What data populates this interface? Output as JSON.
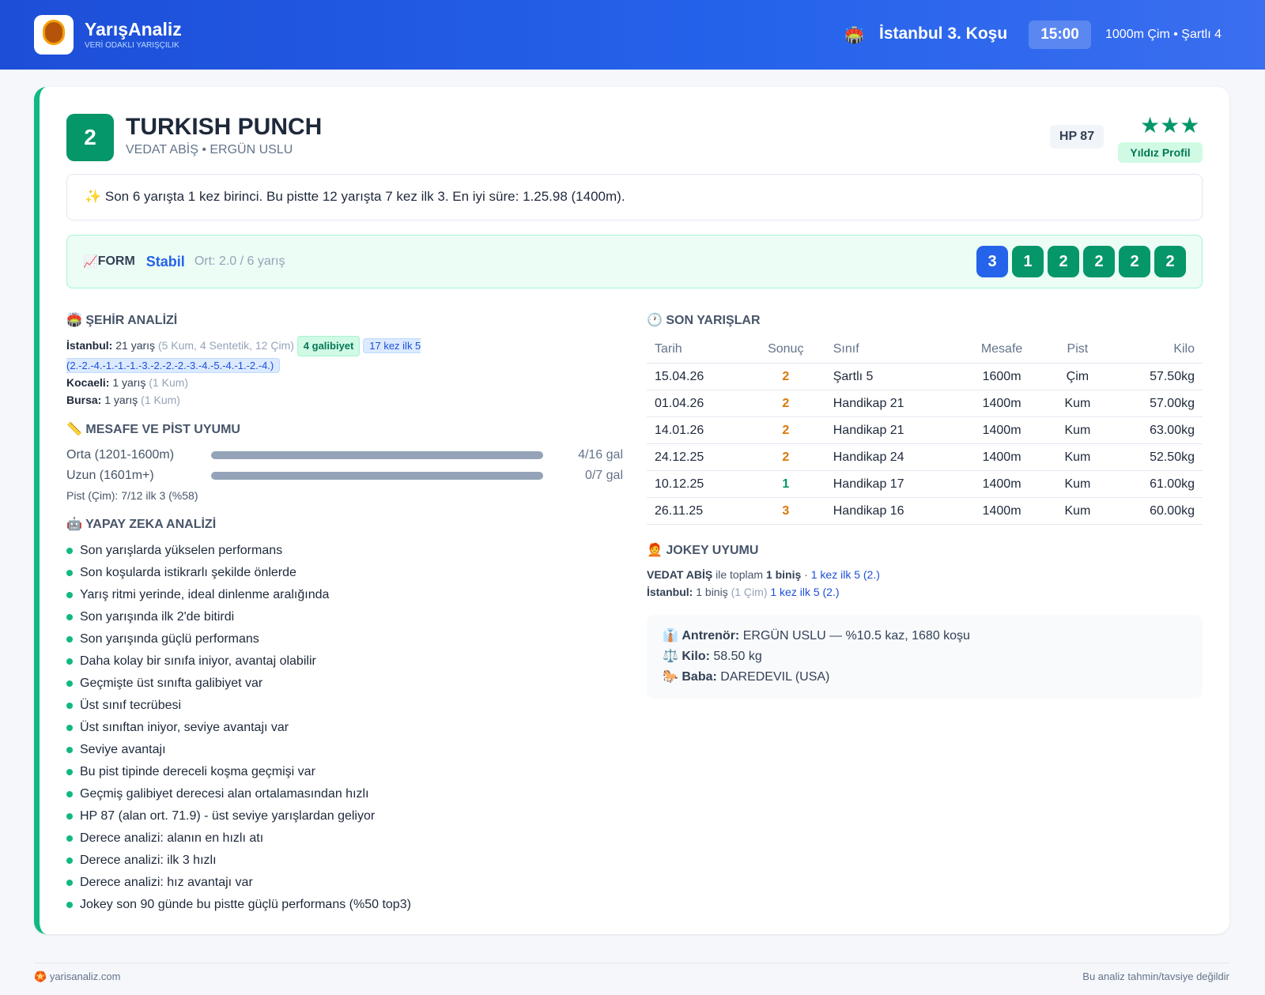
{
  "header": {
    "brand": "YarışAnaliz",
    "tagline": "VERİ ODAKLI YARIŞÇILIK",
    "race": "İstanbul 3. Koşu",
    "time": "15:00",
    "info": "1000m Çim • Şartlı 4"
  },
  "horse": {
    "number": "2",
    "name": "TURKISH PUNCH",
    "subtitle": "VEDAT ABİŞ • ERGÜN USLU",
    "hp": "HP 87",
    "stars": "★★★",
    "profile": "Yıldız Profil"
  },
  "summary": "Son 6 yarışta 1 kez birinci. Bu pistte 12 yarışta 7 kez ilk 3. En iyi süre: 1.25.98 (1400m).",
  "form": {
    "label": "FORM",
    "status": "Stabil",
    "average": "Ort: 2.0 / 6 yarış",
    "results": [
      3,
      1,
      2,
      2,
      2,
      2
    ]
  },
  "city": {
    "title": "ŞEHİR ANALİZİ",
    "rows": [
      {
        "city": "İstanbul:",
        "races": "21 yarış",
        "detail": "(5 Kum, 4 Sentetik, 12 Çim)",
        "wins": "4 galibiyet",
        "top5": "17 kez ilk 5 (2.-2.-4.-1.-1.-1.-3.-2.-2.-2.-3.-4.-5.-4.-1.-2.-4.)"
      },
      {
        "city": "Kocaeli:",
        "races": "1 yarış",
        "detail": "(1 Kum)"
      },
      {
        "city": "Bursa:",
        "races": "1 yarış",
        "detail": "(1 Kum)"
      }
    ]
  },
  "distance": {
    "title": "MESAFE VE PİST UYUMU",
    "rows": [
      {
        "label": "Orta (1201-1600m)",
        "result": "4/16 gal"
      },
      {
        "label": "Uzun (1601m+)",
        "result": "0/7 gal"
      }
    ],
    "track": "Pist (Çim): 7/12 ilk 3 (%58)"
  },
  "ai": {
    "title": "YAPAY ZEKA ANALİZİ",
    "items": [
      "Son yarışlarda yükselen performans",
      "Son koşularda istikrarlı şekilde önlerde",
      "Yarış ritmi yerinde, ideal dinlenme aralığında",
      "Son yarışında ilk 2'de bitirdi",
      "Son yarışında güçlü performans",
      "Daha kolay bir sınıfa iniyor, avantaj olabilir",
      "Geçmişte üst sınıfta galibiyet var",
      "Üst sınıf tecrübesi",
      "Üst sınıftan iniyor, seviye avantajı var",
      "Seviye avantajı",
      "Bu pist tipinde dereceli koşma geçmişi var",
      "Geçmiş galibiyet derecesi alan ortalamasından hızlı",
      "HP 87 (alan ort. 71.9) - üst seviye yarışlardan geliyor",
      "Derece analizi: alanın en hızlı atı",
      "Derece analizi: ilk 3 hızlı",
      "Derece analizi: hız avantajı var",
      "Jokey son 90 günde bu pistte güçlü performans (%50 top3)"
    ]
  },
  "recent": {
    "title": "SON YARIŞLAR",
    "columns": [
      "Tarih",
      "Sonuç",
      "Sınıf",
      "Mesafe",
      "Pist",
      "Kilo"
    ],
    "rows": [
      [
        "15.04.26",
        2,
        "Şartlı 5",
        "1600m",
        "Çim",
        "57.50kg"
      ],
      [
        "01.04.26",
        2,
        "Handikap 21",
        "1400m",
        "Kum",
        "57.00kg"
      ],
      [
        "14.01.26",
        2,
        "Handikap 21",
        "1400m",
        "Kum",
        "63.00kg"
      ],
      [
        "24.12.25",
        2,
        "Handikap 24",
        "1400m",
        "Kum",
        "52.50kg"
      ],
      [
        "10.12.25",
        1,
        "Handikap 17",
        "1400m",
        "Kum",
        "61.00kg"
      ],
      [
        "26.11.25",
        3,
        "Handikap 16",
        "1400m",
        "Kum",
        "60.00kg"
      ]
    ]
  },
  "jockey": {
    "title": "JOKEY UYUMU",
    "name": "VEDAT ABİŞ",
    "text": "ile toplam",
    "rides": "1 biniş",
    "top5": "1 kez ilk 5 (2.)",
    "city": "İstanbul:",
    "city_rides": "1 biniş",
    "city_detail": "(1 Çim)",
    "city_top5": "1 kez ilk 5 (2.)"
  },
  "info": [
    {
      "label": "Antrenör:",
      "value": "ERGÜN USLU — %10.5 kaz, 1680 koşu"
    },
    {
      "label": "Kilo:",
      "value": "58.50 kg"
    },
    {
      "label": "Baba:",
      "value": "DAREDEVIL (USA)"
    }
  ],
  "footer": {
    "site": "yarisanaliz.com",
    "disclaimer": "Bu analiz tahmin/tavsiye değildir"
  }
}
